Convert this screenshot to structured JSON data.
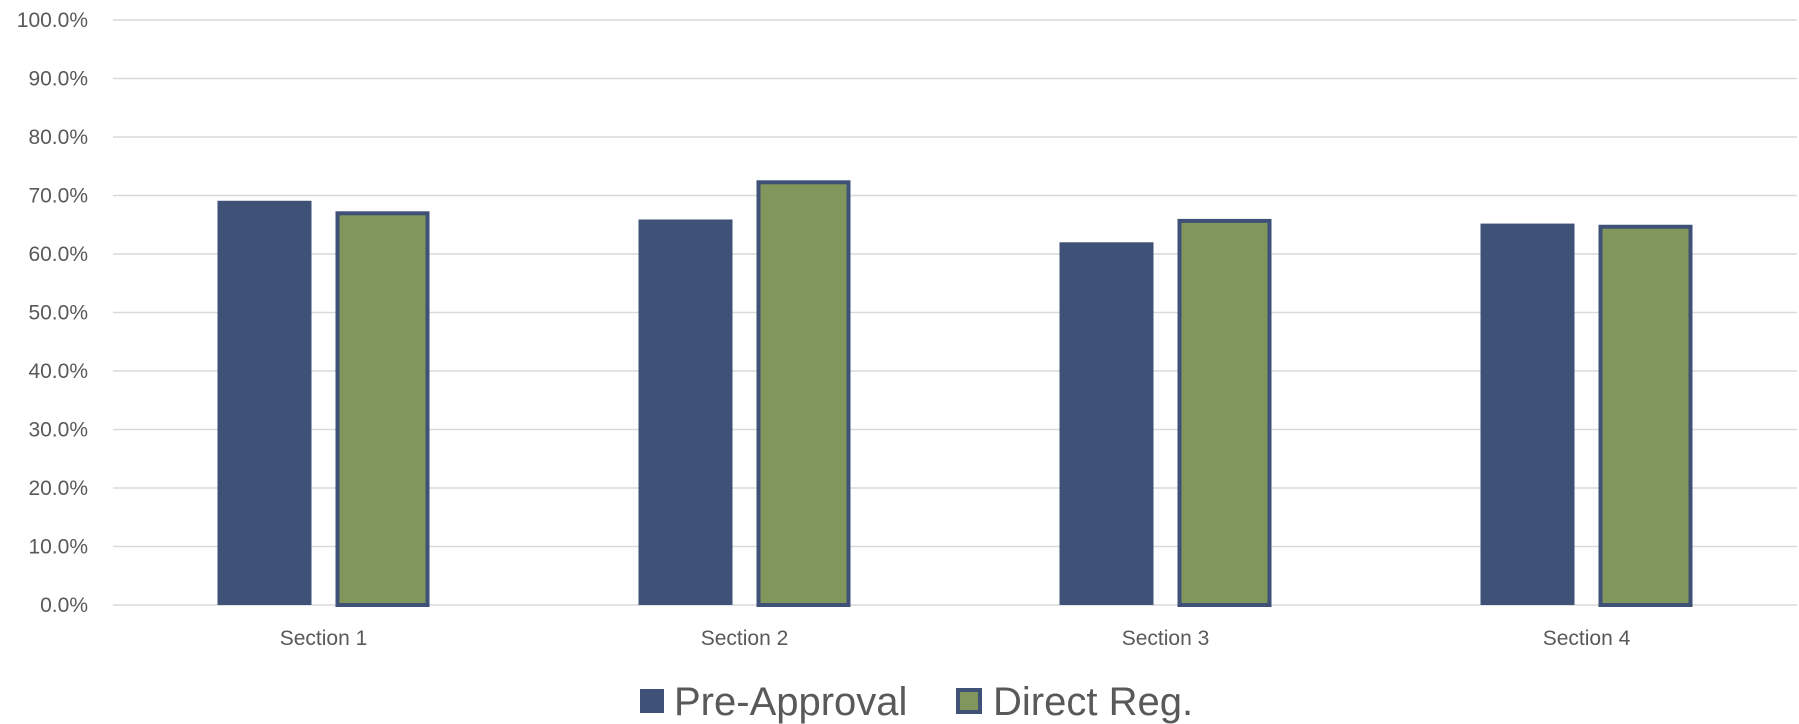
{
  "chart_data": {
    "type": "bar",
    "title": "",
    "xlabel": "",
    "ylabel": "",
    "categories": [
      "Section 1",
      "Section 2",
      "Section 3",
      "Section 4"
    ],
    "series": [
      {
        "name": "Pre-Approval",
        "values": [
          69.1,
          65.9,
          62.0,
          65.2
        ],
        "color": "#3f5177"
      },
      {
        "name": "Direct Reg.",
        "values": [
          67.3,
          72.6,
          66.0,
          65.0
        ],
        "color": "#80965b",
        "outline": "#3f5177"
      }
    ],
    "ylim": [
      0,
      100
    ],
    "yticks": [
      "0.0%",
      "10.0%",
      "20.0%",
      "30.0%",
      "40.0%",
      "50.0%",
      "60.0%",
      "70.0%",
      "80.0%",
      "90.0%",
      "100.0%"
    ],
    "grid": true,
    "legend_position": "bottom"
  }
}
